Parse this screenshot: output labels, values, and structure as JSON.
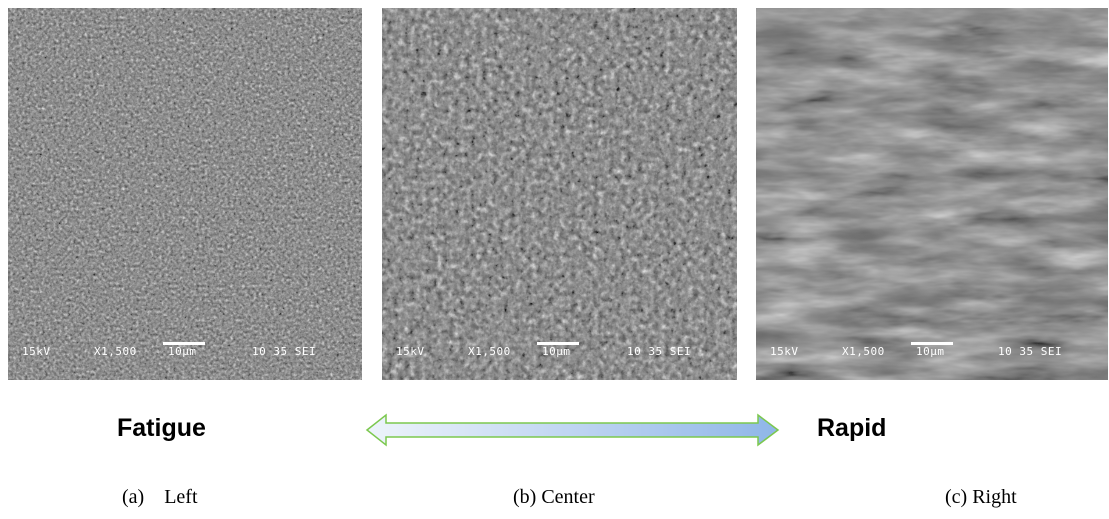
{
  "panels": [
    {
      "caption": "(a)    Left",
      "voltage": "15kV",
      "magnification": "X1,500",
      "scale": "10µm",
      "code": "10 35 SEI"
    },
    {
      "caption": "(b) Center",
      "voltage": "15kV",
      "magnification": "X1,500",
      "scale": "10µm",
      "code": "10 35 SEI"
    },
    {
      "caption": "(c) Right",
      "voltage": "15kV",
      "magnification": "X1,500",
      "scale": "10µm",
      "code": "10 35 SEI"
    }
  ],
  "arrow": {
    "left": "Fatigue",
    "right": "Rapid"
  }
}
